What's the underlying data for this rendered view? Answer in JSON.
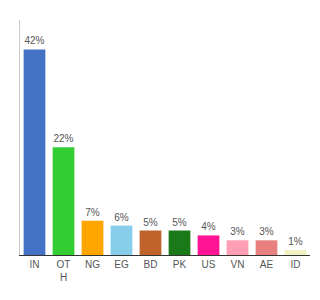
{
  "chart_data": {
    "type": "bar",
    "categories": [
      "IN",
      "OT\nH",
      "NG",
      "EG",
      "BD",
      "PK",
      "US",
      "VN",
      "AE",
      "ID"
    ],
    "values": [
      42,
      22,
      7,
      6,
      5,
      5,
      4,
      3,
      3,
      1
    ],
    "value_labels": [
      "42%",
      "22%",
      "7%",
      "6%",
      "5%",
      "5%",
      "4%",
      "3%",
      "3%",
      "1%"
    ],
    "colors": [
      "#4472c4",
      "#33cc33",
      "#ffa500",
      "#87ceeb",
      "#c0622b",
      "#1a7a1a",
      "#ff1493",
      "#ff9eb5",
      "#e88080",
      "#f0f0c0"
    ],
    "ylim": [
      0,
      48
    ],
    "data_labels": true,
    "tick_labels": "x",
    "grid": false
  }
}
